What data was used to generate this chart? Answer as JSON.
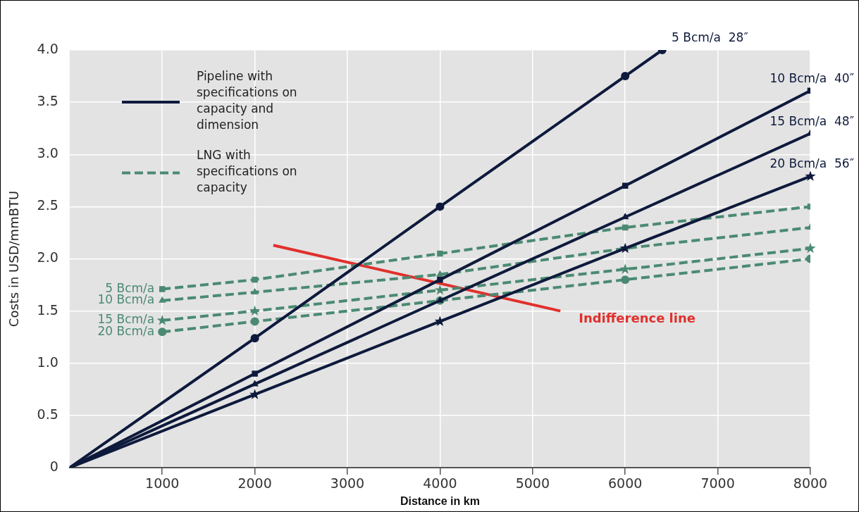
{
  "chart_data": {
    "type": "line",
    "xlabel": "Distance in km",
    "ylabel": "Costs in USD/mmBTU",
    "xlim": [
      0,
      8000
    ],
    "xticks": [
      1000,
      2000,
      3000,
      4000,
      5000,
      6000,
      7000,
      8000
    ],
    "ylim": [
      0,
      4.0
    ],
    "yticks": [
      0,
      0.5,
      {
        "value": 1,
        "label": "1.0"
      },
      1.5,
      {
        "value": 2,
        "label": "2.0"
      },
      2.5,
      {
        "value": 3,
        "label": "3.0"
      },
      3.5,
      {
        "value": 4,
        "label": "4.0"
      }
    ],
    "grid": true,
    "annotations": [
      "Pipeline with specifications on capacity and dimension",
      "LNG with specifications on capacity"
    ],
    "series": [
      {
        "name": "5 Bcm/a  28″",
        "color": "#0e1a3c",
        "marker": "circle",
        "line_style": "solid",
        "x": [
          0,
          2000,
          4000,
          6000,
          6400
        ],
        "values": [
          0,
          1.24,
          2.5,
          3.75,
          4.0
        ]
      },
      {
        "name": "10 Bcm/a  40″",
        "color": "#0e1a3c",
        "marker": "square",
        "line_style": "solid",
        "x": [
          0,
          2000,
          4000,
          6000,
          8000
        ],
        "values": [
          0,
          0.9,
          1.8,
          2.7,
          3.61
        ]
      },
      {
        "name": "15 Bcm/a  48″",
        "color": "#0e1a3c",
        "marker": "triangle",
        "line_style": "solid",
        "x": [
          0,
          2000,
          4000,
          6000,
          8000
        ],
        "values": [
          0,
          0.8,
          1.6,
          2.4,
          3.2
        ]
      },
      {
        "name": "20 Bcm/a  56″",
        "color": "#0e1a3c",
        "marker": "star",
        "line_style": "solid",
        "x": [
          0,
          2000,
          4000,
          6000,
          8000
        ],
        "values": [
          0,
          0.7,
          1.4,
          2.1,
          2.79
        ]
      },
      {
        "name": "5 Bcm/a",
        "color": "#4b8a72",
        "marker": "square",
        "line_style": "dashed",
        "x": [
          1000,
          2000,
          4000,
          6000,
          8000
        ],
        "values": [
          1.71,
          1.8,
          2.05,
          2.3,
          2.5
        ]
      },
      {
        "name": "10 Bcm/a",
        "color": "#4b8a72",
        "marker": "triangle",
        "line_style": "dashed",
        "x": [
          1000,
          2000,
          4000,
          6000,
          8000
        ],
        "values": [
          1.6,
          1.68,
          1.85,
          2.1,
          2.3
        ]
      },
      {
        "name": "15 Bcm/a",
        "color": "#4b8a72",
        "marker": "star",
        "line_style": "dashed",
        "x": [
          1000,
          2000,
          4000,
          6000,
          8000
        ],
        "values": [
          1.41,
          1.5,
          1.7,
          1.9,
          2.1
        ]
      },
      {
        "name": "20 Bcm/a",
        "color": "#4b8a72",
        "marker": "circle",
        "line_style": "dashed",
        "x": [
          1000,
          2000,
          4000,
          6000,
          8000
        ],
        "values": [
          1.3,
          1.4,
          1.6,
          1.8,
          2.0
        ]
      },
      {
        "name": "Indifference line",
        "color": "#e0302c",
        "marker": "none",
        "line_style": "solid",
        "x": [
          2200,
          5300
        ],
        "values": [
          2.13,
          1.5
        ]
      }
    ]
  }
}
